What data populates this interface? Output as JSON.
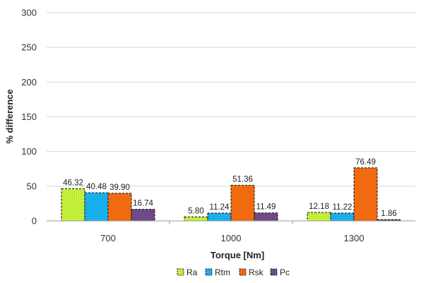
{
  "chart_data": {
    "type": "bar",
    "title": "",
    "xlabel": "Torque [Nm]",
    "ylabel": "% difference",
    "categories": [
      "700",
      "1000",
      "1300"
    ],
    "ylim": [
      0,
      300
    ],
    "yticks": [
      0,
      50,
      100,
      150,
      200,
      250,
      300
    ],
    "grid": "horizontal",
    "legend_position": "bottom",
    "series": [
      {
        "name": "Ra",
        "values": [
          46.32,
          5.8,
          12.18
        ],
        "labels": [
          "46.32",
          "5.80",
          "12.18"
        ],
        "color": "#c6f33a",
        "hatch": "dots"
      },
      {
        "name": "Rtm",
        "values": [
          40.48,
          11.24,
          11.22
        ],
        "labels": [
          "40.48",
          "11.24",
          "11.22"
        ],
        "color": "#1ab2f2",
        "hatch": "dots"
      },
      {
        "name": "Rsk",
        "values": [
          39.9,
          51.36,
          76.49
        ],
        "labels": [
          "39.90",
          "51.36",
          "76.49"
        ],
        "color": "#f06a10",
        "hatch": "none"
      },
      {
        "name": "Pc",
        "values": [
          16.74,
          11.49,
          1.86
        ],
        "labels": [
          "16.74",
          "11.49",
          "1.86"
        ],
        "color": "#6e4b86",
        "hatch": "none"
      }
    ]
  }
}
